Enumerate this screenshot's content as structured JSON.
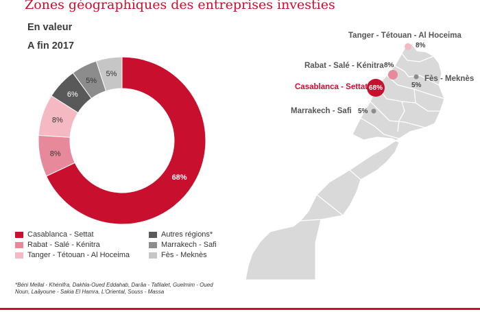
{
  "header": {
    "title": "Zones géographiques des entreprises investies",
    "subtitle1": "En valeur",
    "subtitle2": "A fin 2017"
  },
  "chart_data": {
    "type": "pie",
    "style": "donut",
    "categories": [
      "Casablanca - Settat",
      "Rabat - Salé - Kénitra",
      "Tanger - Tétouan - Al Hoceima",
      "Autres régions*",
      "Marrakech - Safi",
      "Fès - Meknès"
    ],
    "values": [
      68,
      8,
      8,
      6,
      5,
      5
    ],
    "labels": [
      "68%",
      "8%",
      "8%",
      "6%",
      "5%",
      "5%"
    ],
    "colors": [
      "#c8102e",
      "#e8899b",
      "#f5b9c3",
      "#595959",
      "#8c8c8c",
      "#c6c6c6"
    ],
    "legend_placement": "bottom"
  },
  "legend": {
    "items": [
      {
        "label": "Casablanca - Settat",
        "color": "#c8102e"
      },
      {
        "label": "Rabat - Salé - Kénitra",
        "color": "#e8899b"
      },
      {
        "label": "Tanger - Tétouan - Al Hoceima",
        "color": "#f5b9c3"
      },
      {
        "label": "Autres régions*",
        "color": "#595959"
      },
      {
        "label": "Marrakech - Safi",
        "color": "#8c8c8c"
      },
      {
        "label": "Fès - Meknès",
        "color": "#c6c6c6"
      }
    ]
  },
  "footnote": "*Béni Mellal - Khénifra,  Dakhla-Oued Eddahab, Darâa - Tafilalet, Guelmim - Oued Noun, Laâyoune - Sakia El Hamra, L'Oriental, Souss - Massa",
  "map": {
    "regions": [
      {
        "label": "Tanger - Tétouan - Al Hoceima",
        "pct": "8%",
        "color": "#f5b9c3"
      },
      {
        "label": "Rabat - Salé - Kénitra",
        "pct": "8%",
        "color": "#e8899b"
      },
      {
        "label": "Casablanca - Settat",
        "pct": "68%",
        "color": "#c8102e"
      },
      {
        "label": "Fès - Meknès",
        "pct": "5%",
        "color": "#8c8c8c"
      },
      {
        "label": "Marrakech - Safi",
        "pct": "5%",
        "color": "#8c8c8c"
      }
    ],
    "land_color": "#d9d9d9",
    "border_color": "#ffffff"
  }
}
